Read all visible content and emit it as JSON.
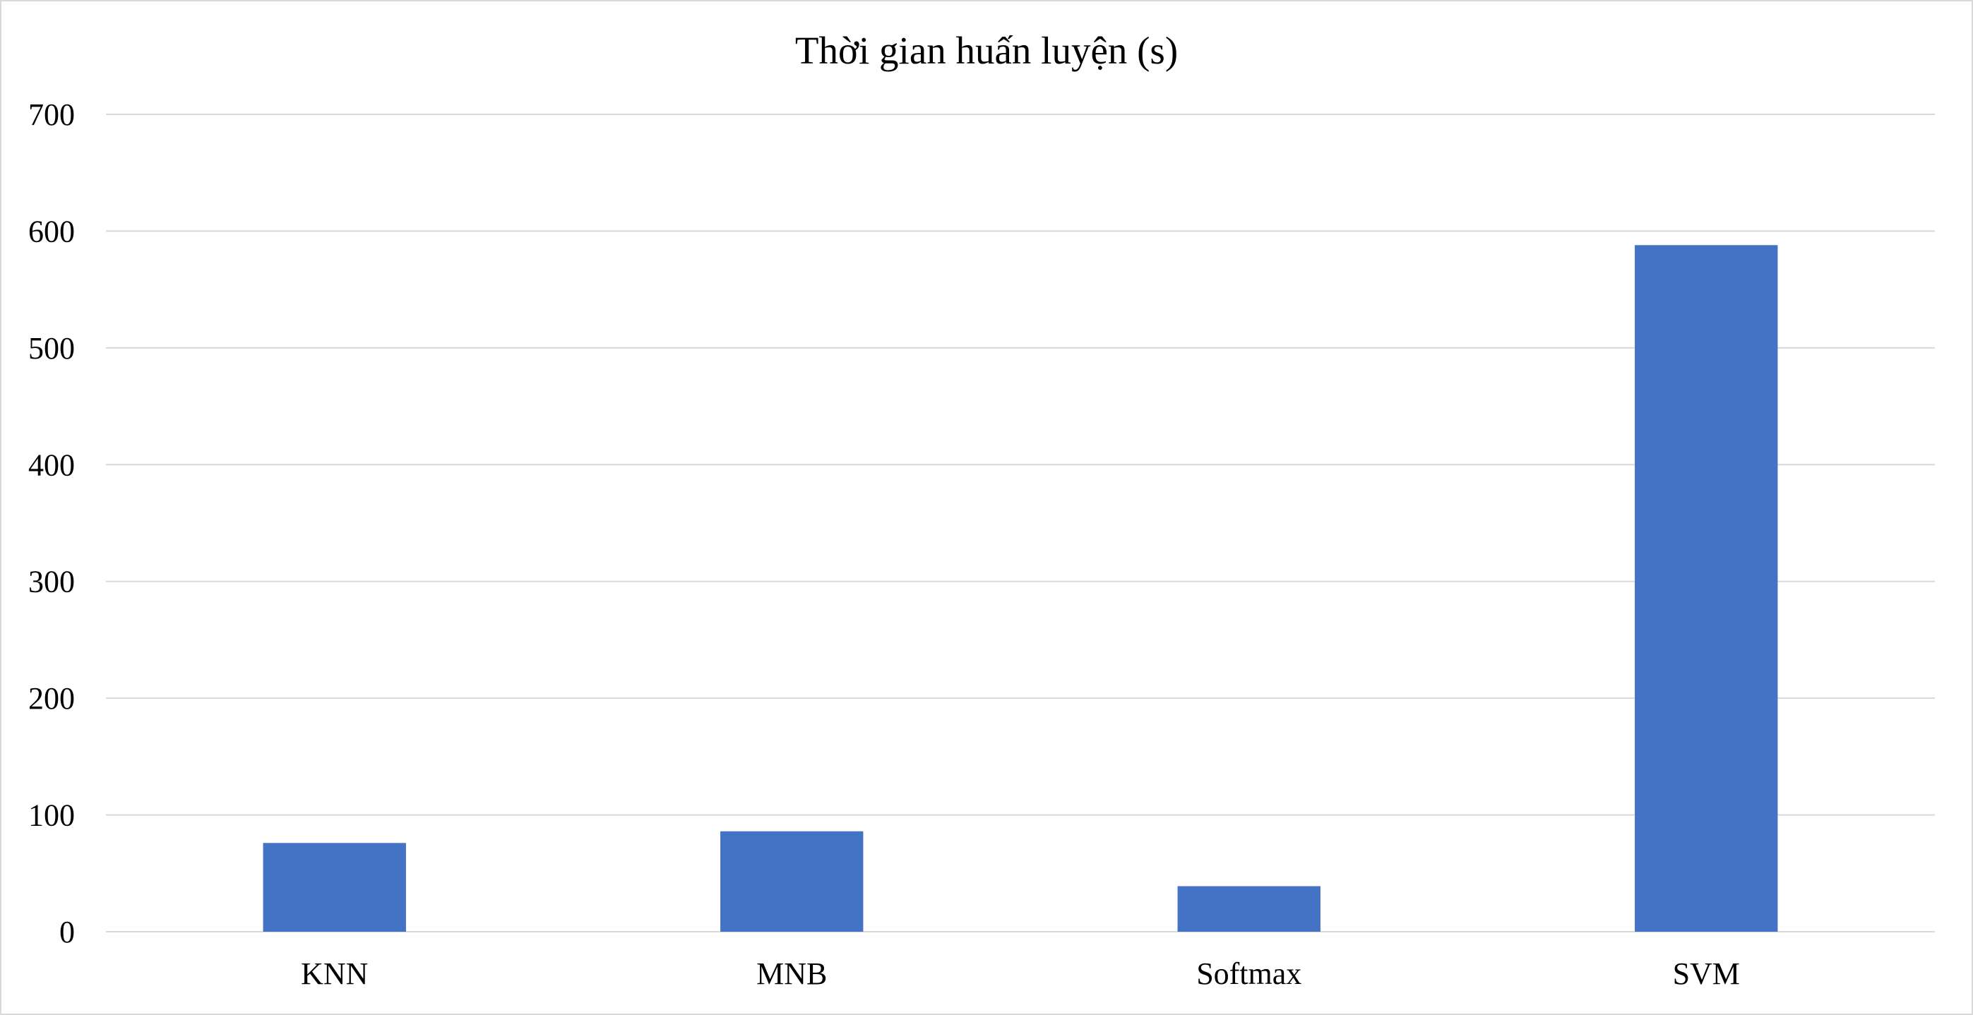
{
  "chart_data": {
    "type": "bar",
    "title": "Thời gian huấn luyện (s)",
    "xlabel": "",
    "ylabel": "",
    "categories": [
      "KNN",
      "MNB",
      "Softmax",
      "SVM"
    ],
    "values": [
      76,
      86,
      39,
      588
    ],
    "ylim": [
      0,
      700
    ],
    "y_ticks": [
      0,
      100,
      200,
      300,
      400,
      500,
      600,
      700
    ],
    "grid": true,
    "legend": "none"
  },
  "colors": {
    "bar": "#4472c4",
    "grid": "#d9d9d9",
    "axis": "#d9d9d9",
    "frame": "#d9d9d9"
  }
}
